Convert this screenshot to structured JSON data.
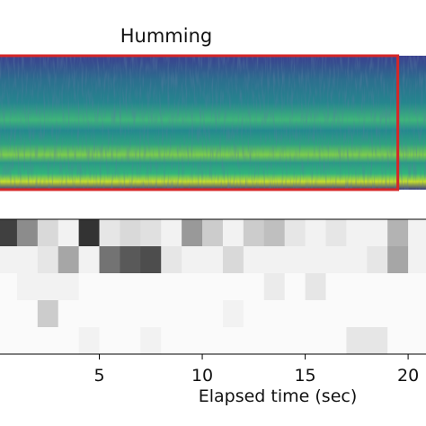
{
  "chart_data": [
    {
      "type": "heatmap",
      "panel": "spectrogram",
      "colormap": "viridis",
      "annotation": {
        "label": "Humming",
        "x_start": 0.0,
        "x_end": 19.5,
        "color": "#d62728"
      },
      "xlim": [
        0.0,
        21.0
      ]
    },
    {
      "type": "heatmap",
      "panel": "activations",
      "colormap": "gray_r",
      "x": [
        0.5,
        1.5,
        2.5,
        3.5,
        4.5,
        5.5,
        6.5,
        7.5,
        8.5,
        9.5,
        10.5,
        11.5,
        12.5,
        13.5,
        14.5,
        15.5,
        16.5,
        17.5,
        18.5,
        19.5,
        20.5
      ],
      "rows": 5,
      "values": [
        [
          0.75,
          0.45,
          0.15,
          0.05,
          0.8,
          0.1,
          0.15,
          0.12,
          0.05,
          0.4,
          0.2,
          0.05,
          0.2,
          0.25,
          0.1,
          0.05,
          0.1,
          0.05,
          0.05,
          0.3,
          0.05
        ],
        [
          0.05,
          0.05,
          0.1,
          0.35,
          0.05,
          0.55,
          0.65,
          0.7,
          0.1,
          0.05,
          0.05,
          0.15,
          0.05,
          0.05,
          0.05,
          0.05,
          0.05,
          0.05,
          0.1,
          0.35,
          0.05
        ],
        [
          0.02,
          0.05,
          0.05,
          0.05,
          0.02,
          0.02,
          0.02,
          0.02,
          0.02,
          0.02,
          0.02,
          0.02,
          0.02,
          0.08,
          0.02,
          0.1,
          0.02,
          0.02,
          0.02,
          0.02,
          0.02
        ],
        [
          0.02,
          0.02,
          0.2,
          0.02,
          0.02,
          0.02,
          0.02,
          0.02,
          0.02,
          0.02,
          0.02,
          0.05,
          0.02,
          0.02,
          0.02,
          0.02,
          0.02,
          0.02,
          0.02,
          0.02,
          0.02
        ],
        [
          0.02,
          0.02,
          0.02,
          0.02,
          0.05,
          0.02,
          0.02,
          0.05,
          0.02,
          0.02,
          0.02,
          0.02,
          0.02,
          0.02,
          0.02,
          0.02,
          0.02,
          0.1,
          0.1,
          0.02,
          0.02
        ]
      ],
      "xlim": [
        0.0,
        21.0
      ],
      "xticks": [
        5,
        10,
        15,
        20
      ],
      "xtick_labels": [
        "5",
        "10",
        "15",
        "20"
      ],
      "xlabel": "Elapsed time (sec)"
    }
  ]
}
